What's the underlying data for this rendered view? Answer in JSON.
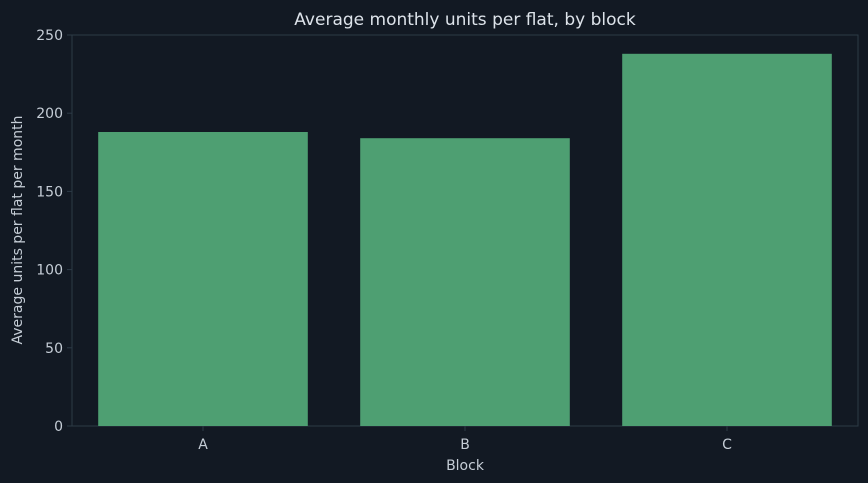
{
  "colors": {
    "background": "#121923",
    "plot_background": "#121923",
    "axis": "#2c3a46",
    "text": "#dde3ea",
    "tick_text": "#c5cdd6",
    "bar": "#4e9f72"
  },
  "chart_data": {
    "type": "bar",
    "title": "Average monthly units per flat, by block",
    "xlabel": "Block",
    "ylabel": "Average units per flat per month",
    "categories": [
      "A",
      "B",
      "C"
    ],
    "values": [
      188,
      184,
      238
    ],
    "ylim": [
      0,
      250
    ],
    "yticks": [
      0,
      50,
      100,
      150,
      200,
      250
    ],
    "grid": false,
    "legend": "none"
  }
}
